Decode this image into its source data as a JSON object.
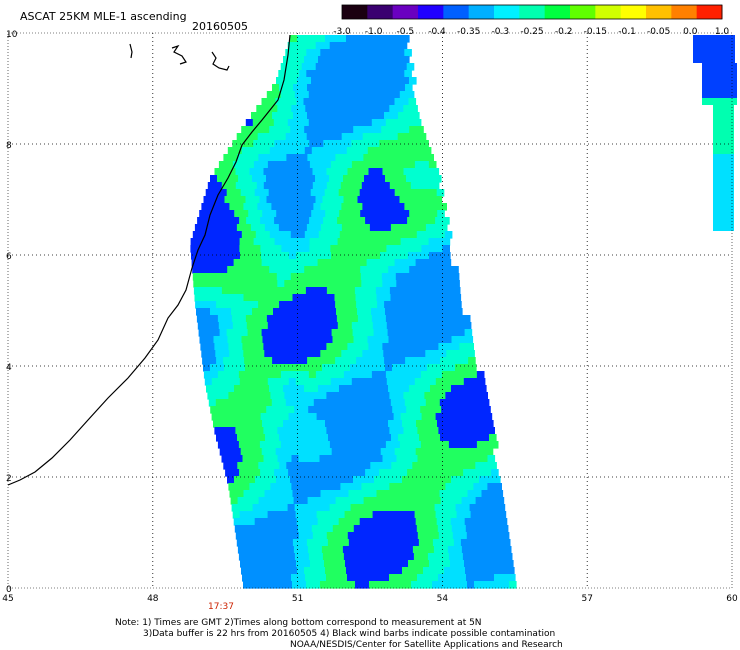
{
  "header": {
    "title": "ASCAT 25KM MLE-1 ascending",
    "date": "20160505"
  },
  "colorbar": {
    "labels": [
      "-3.0",
      "-1.0",
      "-0.5",
      "-0.4",
      "-0.35",
      "-0.3",
      "-0.25",
      "-0.2",
      "-0.15",
      "-0.1",
      "-0.05",
      "0.0",
      "1.0"
    ],
    "colors": [
      "#1a0010",
      "#3a0070",
      "#6a00c0",
      "#2000ff",
      "#0060ff",
      "#00b0ff",
      "#00f0ff",
      "#00ffb0",
      "#00ff40",
      "#60ff00",
      "#d0ff00",
      "#ffff00",
      "#ffc000",
      "#ff8000",
      "#ff2000"
    ]
  },
  "axes": {
    "x_ticks": [
      "45",
      "48",
      "51",
      "54",
      "57",
      "60"
    ],
    "y_ticks": [
      "0",
      "2",
      "4",
      "6",
      "8",
      "10"
    ],
    "lon_range": [
      45,
      60
    ],
    "lat_range": [
      0,
      10
    ]
  },
  "time_label": "17:37",
  "notes": {
    "line1": "Note: 1) Times are GMT 2)Times along bottom correspond to measurement at 5N",
    "line2": "3)Data buffer is 22 hrs from 20160505 4) Black wind barbs indicate possible contamination",
    "line3": "NOAA/NESDIS/Center for Satellite Applications and Research"
  }
}
